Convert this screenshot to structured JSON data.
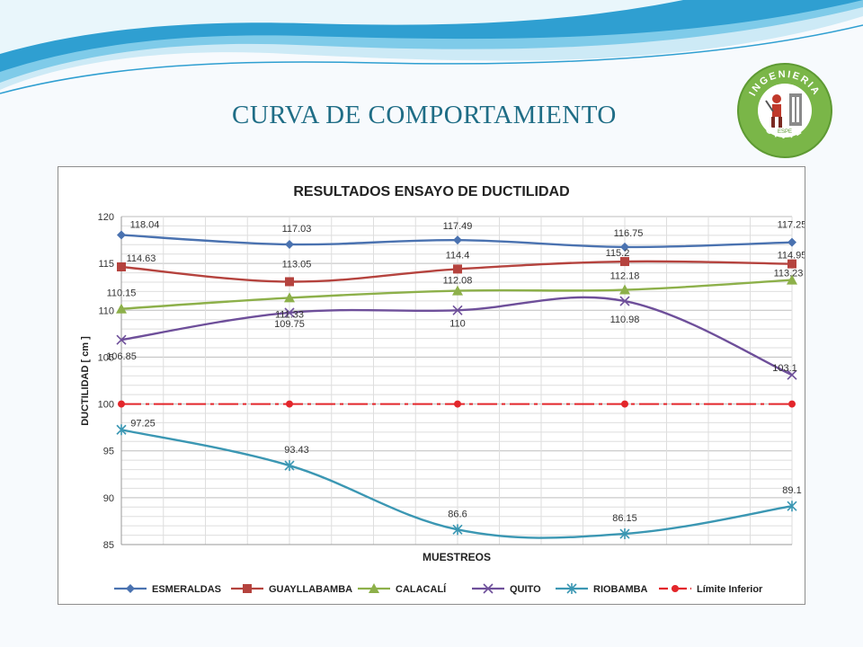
{
  "slide": {
    "title": "CURVA DE COMPORTAMIENTO",
    "colors": {
      "title": "#1f6d86",
      "wave_dark": "#2f9fd1",
      "wave_light": "#bfe6f5"
    }
  },
  "logo": {
    "text_top": "INGENIERIA",
    "text_bottom": "CIVIL",
    "text_small": "ESPE",
    "colors": {
      "ring": "#7ab648",
      "inner": "#ffffff",
      "text": "#ffffff"
    }
  },
  "chart_data": {
    "type": "line",
    "title": "RESULTADOS ENSAYO DE DUCTILIDAD",
    "xlabel": "MUESTREOS",
    "ylabel": "DUCTILIDAD [ cm ]",
    "ylim": [
      85,
      120
    ],
    "yticks": [
      85,
      90,
      95,
      100,
      105,
      110,
      115,
      120
    ],
    "x": [
      1,
      2,
      3,
      4,
      5
    ],
    "grid": true,
    "legend_position": "bottom",
    "series": [
      {
        "name": "ESMERALDAS",
        "color": "#4a72b0",
        "marker": "diamond",
        "dashed": false,
        "values": [
          118.04,
          117.03,
          117.49,
          116.75,
          117.25
        ],
        "labels": [
          "118.04",
          "117.03",
          "117.49",
          "116.75",
          "117.25"
        ]
      },
      {
        "name": "GUAYLLABAMBA",
        "color": "#b5433e",
        "marker": "square",
        "dashed": false,
        "values": [
          114.63,
          113.05,
          114.4,
          115.2,
          114.95
        ],
        "labels": [
          "114.63",
          "113.05",
          "114.4",
          "115.2",
          "114.95"
        ]
      },
      {
        "name": "CALACALÍ",
        "color": "#8db04a",
        "marker": "triangle",
        "dashed": false,
        "values": [
          110.15,
          111.33,
          112.08,
          112.18,
          113.23
        ],
        "labels": [
          "110.15",
          "111.33",
          "112.08",
          "112.18",
          "113.23"
        ]
      },
      {
        "name": "QUITO",
        "color": "#6e4f9a",
        "marker": "x",
        "dashed": false,
        "values": [
          106.85,
          109.75,
          110,
          110.98,
          103.1
        ],
        "labels": [
          "106.85",
          "109.75",
          "110",
          "110.98",
          "103.1"
        ]
      },
      {
        "name": "RIOBAMBA",
        "color": "#3b97b3",
        "marker": "star",
        "dashed": false,
        "values": [
          97.25,
          93.43,
          86.6,
          86.15,
          89.1
        ],
        "labels": [
          "97.25",
          "93.43",
          "86.6",
          "86.15",
          "89.1"
        ]
      },
      {
        "name": "Límite Inferior",
        "color": "#e3262b",
        "marker": "circle",
        "dashed": true,
        "values": [
          100,
          100,
          100,
          100,
          100
        ],
        "labels": []
      }
    ]
  }
}
